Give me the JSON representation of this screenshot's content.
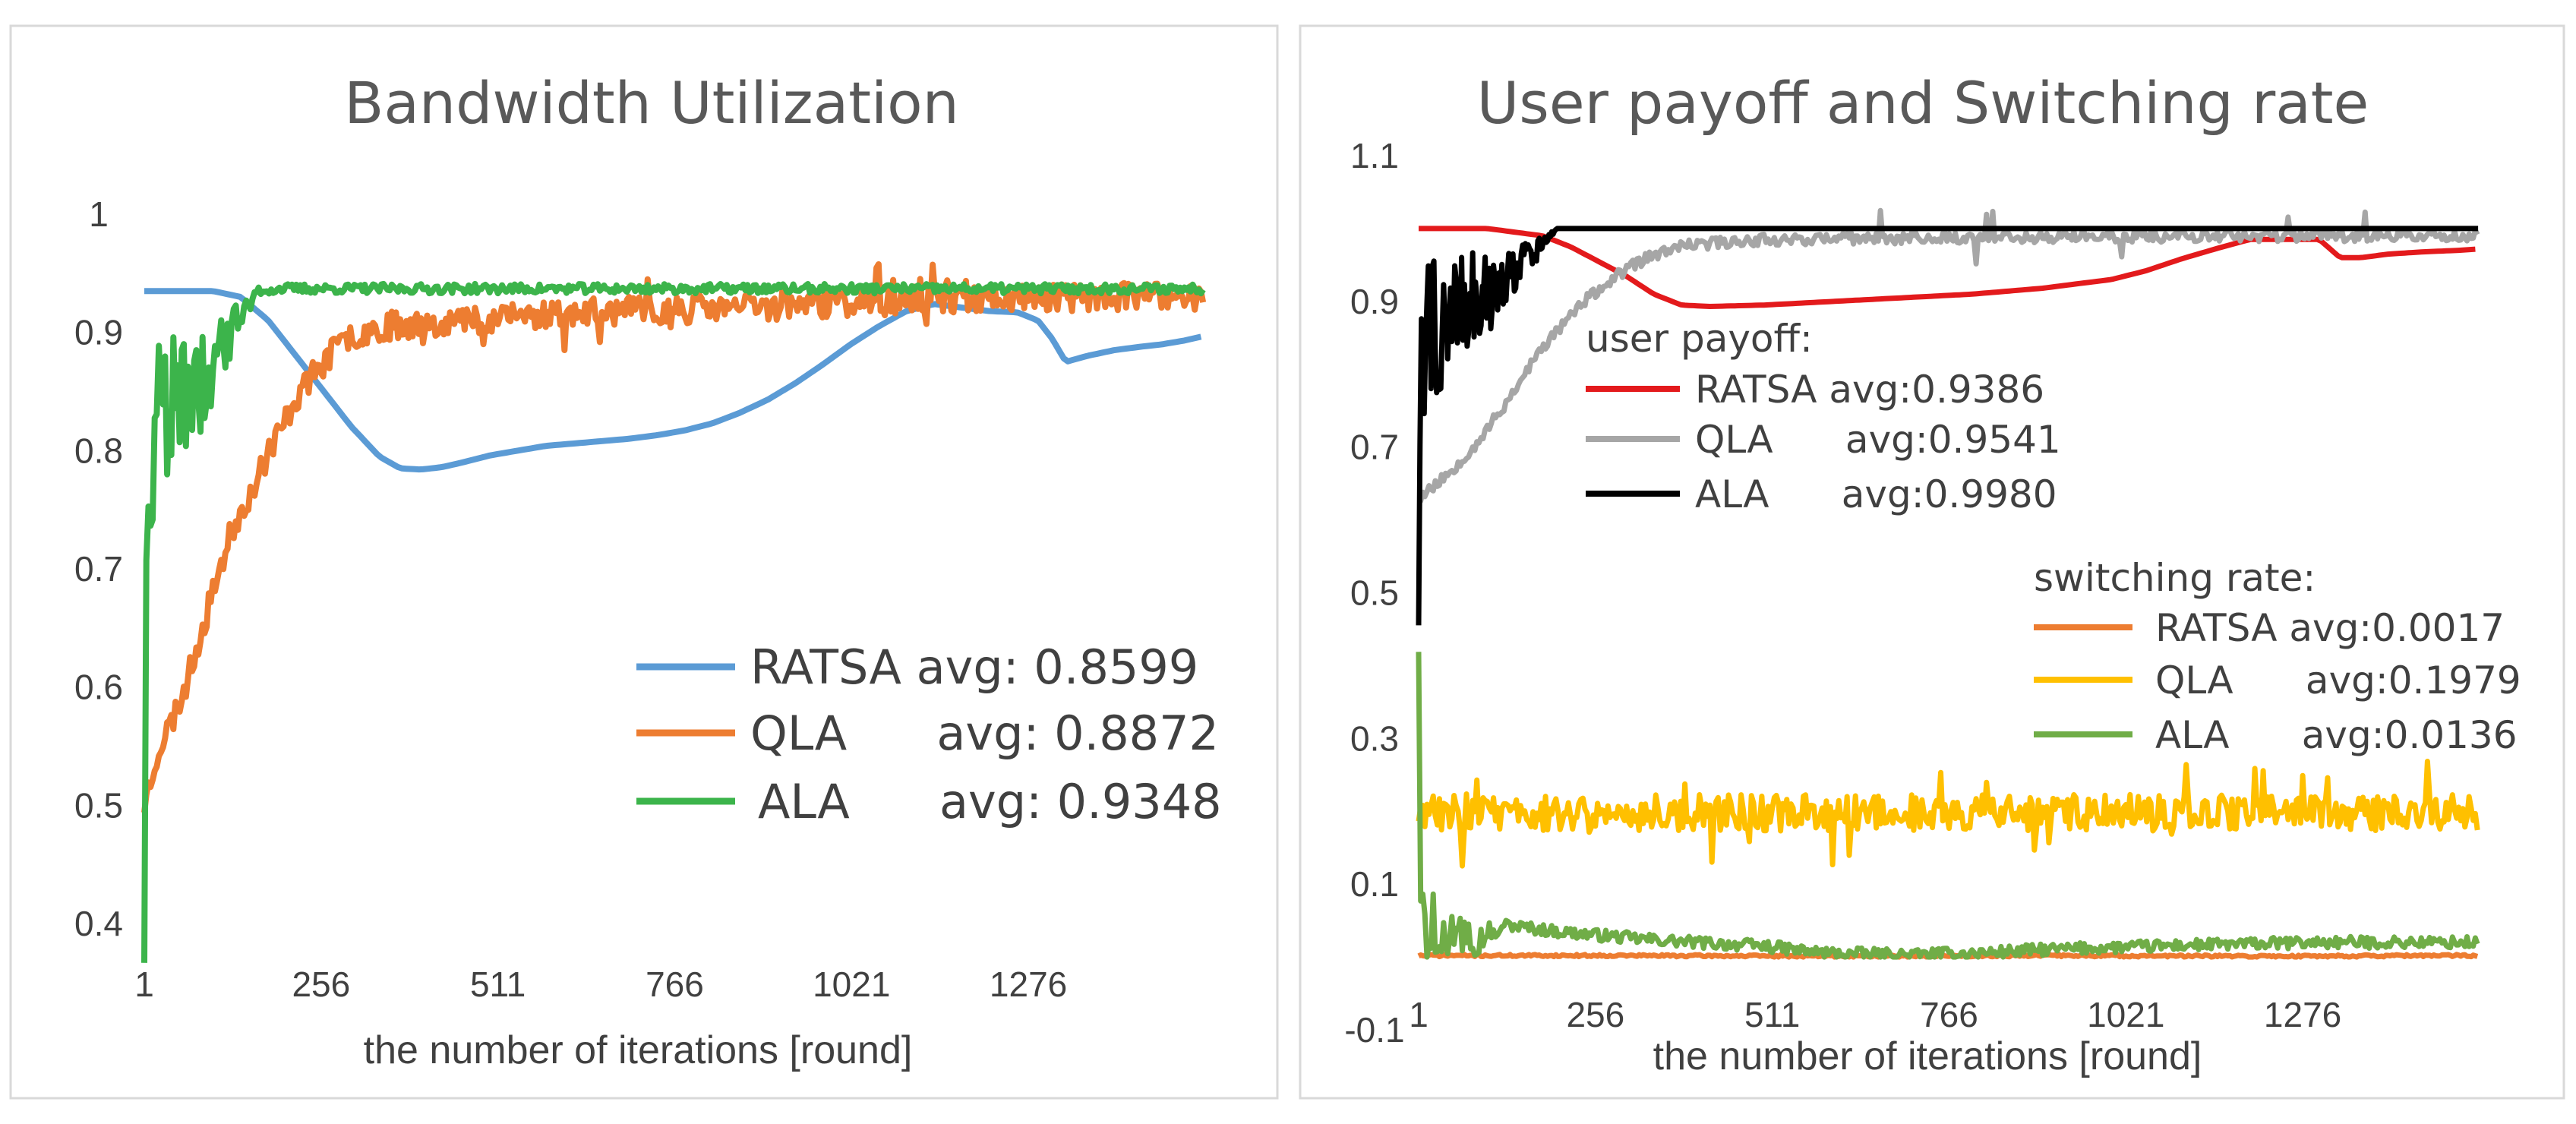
{
  "chart_data": [
    {
      "type": "line",
      "title": "Bandwidth Utilization",
      "xlabel": "the number of iterations [round]",
      "ylabel": "",
      "xlim": [
        1,
        1530
      ],
      "ylim": [
        0.4,
        1.0
      ],
      "xticks": [
        "1",
        "256",
        "511",
        "766",
        "1021",
        "1276"
      ],
      "yticks": [
        "0.4",
        "0.5",
        "0.6",
        "0.7",
        "0.8",
        "0.9",
        "1"
      ],
      "legend_position": "center-right",
      "series": [
        {
          "name": "RATSA avg: 0.8599",
          "color": "#5b9bd5",
          "x": [
            1,
            20,
            60,
            100,
            140,
            180,
            220,
            260,
            300,
            340,
            370,
            400,
            430,
            460,
            500,
            540,
            580,
            620,
            660,
            700,
            740,
            780,
            820,
            860,
            900,
            940,
            980,
            1020,
            1060,
            1100,
            1140,
            1180,
            1220,
            1260,
            1290,
            1310,
            1330,
            1360,
            1400,
            1440,
            1470,
            1500,
            1530
          ],
          "values": [
            0.935,
            0.935,
            0.935,
            0.935,
            0.93,
            0.91,
            0.88,
            0.85,
            0.82,
            0.795,
            0.785,
            0.784,
            0.786,
            0.79,
            0.796,
            0.8,
            0.804,
            0.806,
            0.808,
            0.81,
            0.813,
            0.817,
            0.823,
            0.832,
            0.843,
            0.857,
            0.873,
            0.89,
            0.905,
            0.918,
            0.924,
            0.921,
            0.918,
            0.917,
            0.91,
            0.895,
            0.875,
            0.88,
            0.885,
            0.888,
            0.89,
            0.893,
            0.897
          ]
        },
        {
          "name": "QLA      avg: 0.8872",
          "color": "#ed7d31",
          "x": [
            1,
            20,
            40,
            60,
            80,
            100,
            120,
            140,
            160,
            180,
            200,
            220,
            240,
            260,
            280,
            300,
            330,
            360,
            400,
            450,
            500,
            550,
            600,
            700,
            800,
            900,
            1000,
            1100,
            1200,
            1300,
            1400,
            1530
          ],
          "values": [
            0.5,
            0.545,
            0.57,
            0.6,
            0.64,
            0.68,
            0.72,
            0.75,
            0.77,
            0.8,
            0.82,
            0.845,
            0.86,
            0.875,
            0.888,
            0.897,
            0.903,
            0.906,
            0.908,
            0.91,
            0.912,
            0.914,
            0.916,
            0.918,
            0.92,
            0.922,
            0.925,
            0.927,
            0.929,
            0.93,
            0.93,
            0.93
          ]
        },
        {
          "name": "ALA      avg: 0.9348",
          "color": "#3cb44b",
          "x": [
            1,
            3,
            6,
            10,
            20,
            40,
            60,
            80,
            100,
            120,
            140,
            160,
            200,
            300,
            400,
            600,
            800,
            1000,
            1200,
            1400,
            1530
          ],
          "values": [
            0.46,
            0.7,
            0.87,
            0.9,
            0.9,
            0.91,
            0.9,
            0.91,
            0.915,
            0.925,
            0.93,
            0.935,
            0.937,
            0.937,
            0.937,
            0.937,
            0.937,
            0.937,
            0.937,
            0.937,
            0.937
          ]
        }
      ]
    },
    {
      "type": "line",
      "title": "User payoff and Switching rate",
      "xlabel": "the number of iterations [round]",
      "ylabel": "",
      "xlim": [
        1,
        1530
      ],
      "ylim": [
        -0.1,
        1.1
      ],
      "xticks": [
        "1",
        "256",
        "511",
        "766",
        "1021",
        "1276"
      ],
      "yticks": [
        "-0.1",
        "0.1",
        "0.3",
        "0.5",
        "0.7",
        "0.9",
        "1.1"
      ],
      "legend_groups": [
        "user payoff:",
        "switching rate:"
      ],
      "legend_position": "inside",
      "series": [
        {
          "name": "RATSA avg:0.9386",
          "group": "user payoff",
          "color": "#e31a1c",
          "x": [
            1,
            100,
            180,
            220,
            260,
            300,
            340,
            380,
            420,
            500,
            600,
            700,
            800,
            900,
            1000,
            1050,
            1100,
            1150,
            1200,
            1250,
            1300,
            1330,
            1360,
            1400,
            1450,
            1500,
            1530
          ],
          "values": [
            1.0,
            1.0,
            0.99,
            0.975,
            0.955,
            0.935,
            0.91,
            0.895,
            0.893,
            0.895,
            0.9,
            0.905,
            0.91,
            0.918,
            0.93,
            0.942,
            0.958,
            0.972,
            0.985,
            0.985,
            0.985,
            0.96,
            0.96,
            0.965,
            0.968,
            0.97,
            0.972
          ]
        },
        {
          "name": "QLA      avg:0.9541",
          "group": "user payoff",
          "color": "#a6a6a6",
          "x": [
            1,
            40,
            80,
            120,
            160,
            200,
            240,
            280,
            320,
            360,
            400,
            450,
            500,
            600,
            800,
            1000,
            1200,
            1400,
            1530
          ],
          "values": [
            0.63,
            0.66,
            0.7,
            0.75,
            0.81,
            0.86,
            0.9,
            0.93,
            0.955,
            0.97,
            0.978,
            0.982,
            0.985,
            0.986,
            0.988,
            0.989,
            0.99,
            0.99,
            0.99
          ]
        },
        {
          "name": "ALA      avg:0.9980",
          "group": "user payoff",
          "color": "#000000",
          "x": [
            1,
            3,
            6,
            10,
            30,
            60,
            100,
            140,
            180,
            200,
            300,
            600,
            900,
            1200,
            1530
          ],
          "values": [
            0.57,
            0.85,
            0.95,
            0.96,
            0.96,
            0.965,
            0.97,
            0.98,
            0.99,
            1.0,
            1.0,
            1.0,
            1.0,
            1.0,
            1.0
          ]
        },
        {
          "name": "RATSA avg:0.0017",
          "group": "switching rate",
          "color": "#ed7d31",
          "x": [
            1,
            300,
            600,
            900,
            1200,
            1530
          ],
          "values": [
            0.002,
            0.002,
            0.001,
            0.002,
            0.001,
            0.002
          ]
        },
        {
          "name": "QLA      avg:0.1979",
          "group": "switching rate",
          "color": "#ffc000",
          "x": [
            1,
            200,
            400,
            600,
            800,
            1000,
            1200,
            1400,
            1530
          ],
          "values": [
            0.198,
            0.198,
            0.198,
            0.198,
            0.198,
            0.198,
            0.198,
            0.198,
            0.198
          ]
        },
        {
          "name": "ALA      avg:0.0136",
          "group": "switching rate",
          "color": "#70ad47",
          "x": [
            1,
            3,
            10,
            20,
            40,
            80,
            120,
            160,
            200,
            260,
            320,
            400,
            500,
            560,
            600,
            700,
            800,
            900,
            1000,
            1100,
            1200,
            1300,
            1400,
            1530
          ],
          "values": [
            0.48,
            0.2,
            0.12,
            0.09,
            0.07,
            0.055,
            0.045,
            0.04,
            0.035,
            0.03,
            0.025,
            0.02,
            0.015,
            0.008,
            0.005,
            0.003,
            0.005,
            0.01,
            0.013,
            0.016,
            0.018,
            0.02,
            0.02,
            0.02
          ]
        }
      ]
    }
  ]
}
